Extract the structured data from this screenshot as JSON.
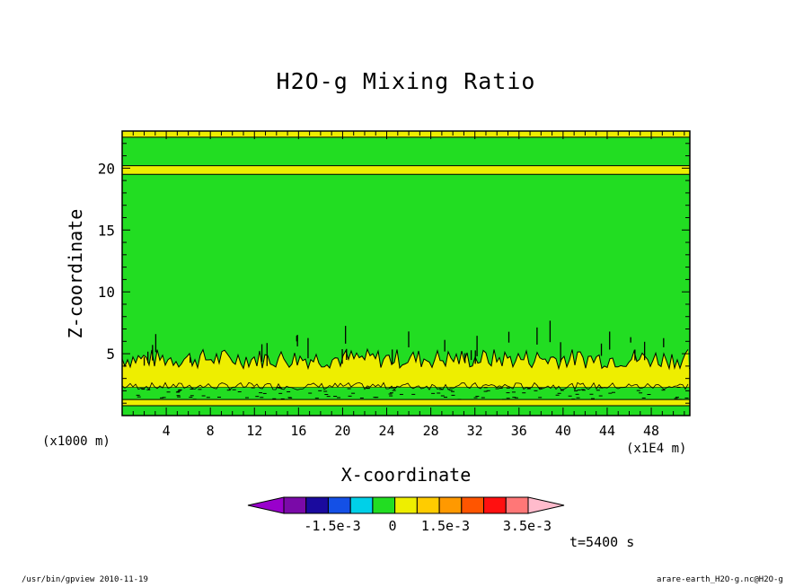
{
  "chart_data": {
    "type": "heatmap",
    "title": "H2O-g Mixing Ratio",
    "xlabel": "X-coordinate",
    "ylabel": "Z-coordinate",
    "x_unit_label": "(x1E4 m)",
    "y_unit_label": "(x1000 m)",
    "xlim": [
      0,
      51.5
    ],
    "ylim": [
      0,
      23
    ],
    "x_ticks": [
      "4",
      "8",
      "12",
      "16",
      "20",
      "24",
      "28",
      "32",
      "36",
      "40",
      "44",
      "48"
    ],
    "y_ticks": [
      "5",
      "10",
      "15",
      "20"
    ],
    "colorbar": {
      "labels": [
        "-1.5e-3",
        "0",
        "1.5e-3",
        "3.5e-3"
      ],
      "colors": [
        "#9900cc",
        "#7a0aa8",
        "#1a0a9e",
        "#1450e6",
        "#00d0e8",
        "#22dd22",
        "#eeee00",
        "#ffcc00",
        "#ff9900",
        "#ff5500",
        "#ff1010",
        "#ff7777",
        "#ffbbcc"
      ]
    },
    "layers": [
      {
        "from": 0.0,
        "to": 0.8,
        "value": "0",
        "color": "#22dd22"
      },
      {
        "from": 0.8,
        "to": 1.3,
        "value": "0.5e-3",
        "color": "#eeee00"
      },
      {
        "from": 1.3,
        "to": 2.3,
        "value": "0",
        "color": "#22dd22"
      },
      {
        "from": 2.3,
        "to": 3.8,
        "value": "0.5e-3",
        "color": "#eeee00"
      },
      {
        "from": 3.8,
        "to": 19.5,
        "value": "0",
        "color": "#22dd22"
      },
      {
        "from": 19.5,
        "to": 20.2,
        "value": "0.5e-3",
        "color": "#eeee00"
      },
      {
        "from": 20.2,
        "to": 22.5,
        "value": "0",
        "color": "#22dd22"
      },
      {
        "from": 22.5,
        "to": 23.0,
        "value": "0.5e-3",
        "color": "#eeee00"
      }
    ],
    "time_label": "t=5400 s"
  },
  "footer": {
    "left": "/usr/bin/gpview   2010-11-19",
    "right": "arare-earth_H2O-g.nc@H2O-g"
  }
}
